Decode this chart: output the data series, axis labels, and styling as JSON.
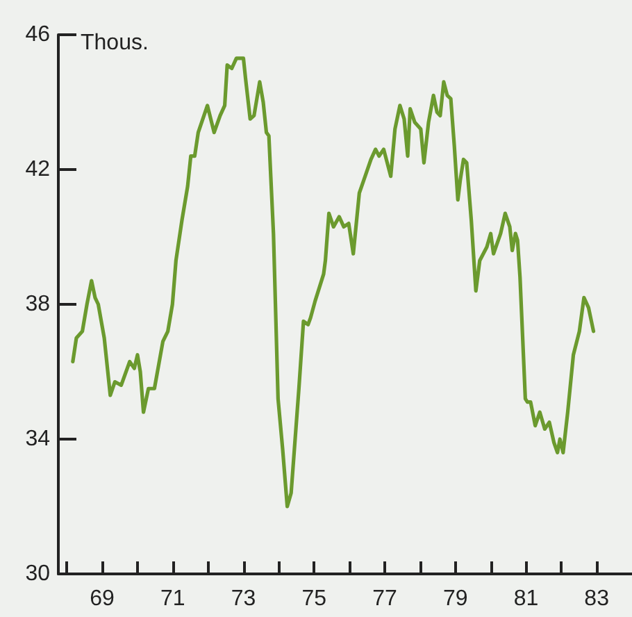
{
  "chart_data": {
    "type": "line",
    "ylabel": "Thous.",
    "color": "#6b9a2e",
    "marker": "none",
    "grid": false,
    "xlim": [
      1967.76,
      1984.0
    ],
    "ylim": [
      30,
      46
    ],
    "xticks": [
      {
        "value": 1968,
        "label": null
      },
      {
        "value": 1969,
        "label": "69"
      },
      {
        "value": 1970,
        "label": null
      },
      {
        "value": 1971,
        "label": "71"
      },
      {
        "value": 1972,
        "label": null
      },
      {
        "value": 1973,
        "label": "73"
      },
      {
        "value": 1974,
        "label": null
      },
      {
        "value": 1975,
        "label": "75"
      },
      {
        "value": 1976,
        "label": null
      },
      {
        "value": 1977,
        "label": "77"
      },
      {
        "value": 1978,
        "label": null
      },
      {
        "value": 1979,
        "label": "79"
      },
      {
        "value": 1980,
        "label": null
      },
      {
        "value": 1981,
        "label": "81"
      },
      {
        "value": 1982,
        "label": null
      },
      {
        "value": 1983,
        "label": "83"
      }
    ],
    "yticks": [
      30,
      34,
      38,
      42,
      46
    ],
    "x": [
      1968.17,
      1968.27,
      1968.44,
      1968.57,
      1968.7,
      1968.8,
      1968.89,
      1969.06,
      1969.23,
      1969.36,
      1969.54,
      1969.78,
      1969.91,
      1970.0,
      1970.08,
      1970.17,
      1970.31,
      1970.48,
      1970.72,
      1970.86,
      1970.99,
      1971.09,
      1971.26,
      1971.42,
      1971.51,
      1971.62,
      1971.72,
      1971.98,
      1972.17,
      1972.34,
      1972.47,
      1972.54,
      1972.67,
      1972.8,
      1973.0,
      1973.06,
      1973.19,
      1973.3,
      1973.46,
      1973.56,
      1973.65,
      1973.72,
      1973.85,
      1973.98,
      1974.11,
      1974.24,
      1974.35,
      1974.57,
      1974.7,
      1974.83,
      1974.9,
      1975.03,
      1975.27,
      1975.32,
      1975.42,
      1975.55,
      1975.71,
      1975.84,
      1975.98,
      1976.11,
      1976.28,
      1976.61,
      1976.74,
      1976.84,
      1976.97,
      1977.17,
      1977.29,
      1977.43,
      1977.55,
      1977.65,
      1977.72,
      1977.85,
      1978.02,
      1978.11,
      1978.24,
      1978.38,
      1978.48,
      1978.57,
      1978.67,
      1978.77,
      1978.87,
      1978.97,
      1979.07,
      1979.14,
      1979.23,
      1979.32,
      1979.45,
      1979.58,
      1979.69,
      1979.89,
      1980.0,
      1980.08,
      1980.28,
      1980.41,
      1980.54,
      1980.61,
      1980.7,
      1980.76,
      1980.83,
      1980.98,
      1981.04,
      1981.13,
      1981.26,
      1981.39,
      1981.53,
      1981.66,
      1981.79,
      1981.89,
      1981.96,
      1982.05,
      1982.18,
      1982.34,
      1982.51,
      1982.64,
      1982.77,
      1982.91
    ],
    "values": [
      36.3,
      37.0,
      37.2,
      38.0,
      38.7,
      38.2,
      38.0,
      37.0,
      35.3,
      35.7,
      35.6,
      36.3,
      36.1,
      36.5,
      36.0,
      34.8,
      35.5,
      35.5,
      36.9,
      37.2,
      38.0,
      39.3,
      40.5,
      41.5,
      42.4,
      42.4,
      43.1,
      43.9,
      43.1,
      43.6,
      43.9,
      45.1,
      45.0,
      45.3,
      45.3,
      44.7,
      43.5,
      43.6,
      44.6,
      44.0,
      43.1,
      43.0,
      40.1,
      35.2,
      33.7,
      32.0,
      32.4,
      35.5,
      37.5,
      37.4,
      37.6,
      38.1,
      38.9,
      39.3,
      40.7,
      40.3,
      40.6,
      40.3,
      40.4,
      39.5,
      41.3,
      42.3,
      42.6,
      42.4,
      42.6,
      41.8,
      43.2,
      43.9,
      43.5,
      42.4,
      43.8,
      43.4,
      43.2,
      42.2,
      43.4,
      44.2,
      43.7,
      43.6,
      44.6,
      44.2,
      44.1,
      42.7,
      41.1,
      41.7,
      42.3,
      42.2,
      40.5,
      38.4,
      39.3,
      39.7,
      40.1,
      39.5,
      40.1,
      40.7,
      40.3,
      39.6,
      40.1,
      39.9,
      38.8,
      35.2,
      35.1,
      35.1,
      34.4,
      34.8,
      34.3,
      34.5,
      33.9,
      33.6,
      34.0,
      33.6,
      34.8,
      36.5,
      37.2,
      38.2,
      37.9,
      37.2
    ]
  }
}
